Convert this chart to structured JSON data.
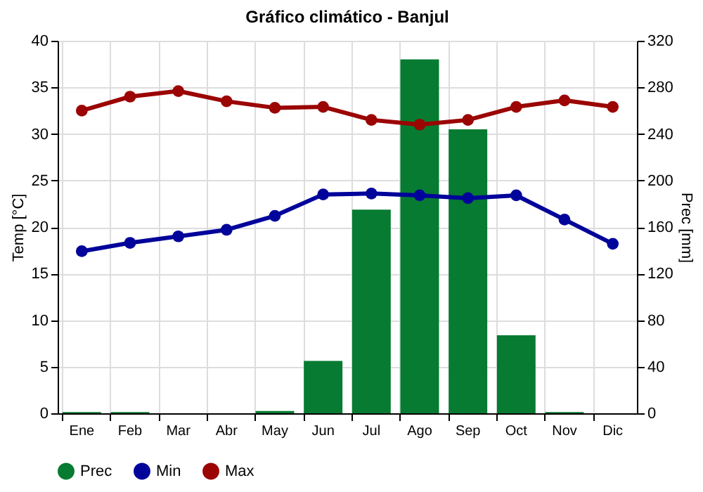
{
  "chart_data": {
    "type": "bar",
    "title": "Gráfico climático - Banjul",
    "ylabel": "Temp [°C]",
    "y2label": "Prec [mm]",
    "categories": [
      "Ene",
      "Feb",
      "Mar",
      "Abr",
      "May",
      "Jun",
      "Jul",
      "Ago",
      "Sep",
      "Oct",
      "Nov",
      "Dic"
    ],
    "series": [
      {
        "name": "Prec",
        "axis": "y2",
        "color": "#067b31",
        "values": [
          1,
          1,
          0,
          0,
          2,
          45,
          175,
          304,
          244,
          67,
          1,
          0
        ]
      },
      {
        "name": "Min",
        "type": "line",
        "color": "#01049a",
        "values": [
          17.4,
          18.3,
          19,
          19.7,
          21.2,
          23.5,
          23.6,
          23.4,
          23.1,
          23.4,
          20.8,
          18.2
        ]
      },
      {
        "name": "Max",
        "type": "line",
        "color": "#9b0504",
        "values": [
          32.5,
          34,
          34.6,
          33.5,
          32.8,
          32.9,
          31.5,
          31,
          31.5,
          32.9,
          33.6,
          32.9
        ]
      }
    ],
    "ylim": [
      0,
      40
    ],
    "yticks": [
      0,
      5,
      10,
      15,
      20,
      25,
      30,
      35,
      40
    ],
    "y2lim": [
      0,
      320
    ],
    "y2ticks": [
      0,
      40,
      80,
      120,
      160,
      200,
      240,
      280,
      320
    ],
    "grid": true,
    "legend": "bottom left",
    "marker": "circle",
    "line_style": "solid"
  }
}
